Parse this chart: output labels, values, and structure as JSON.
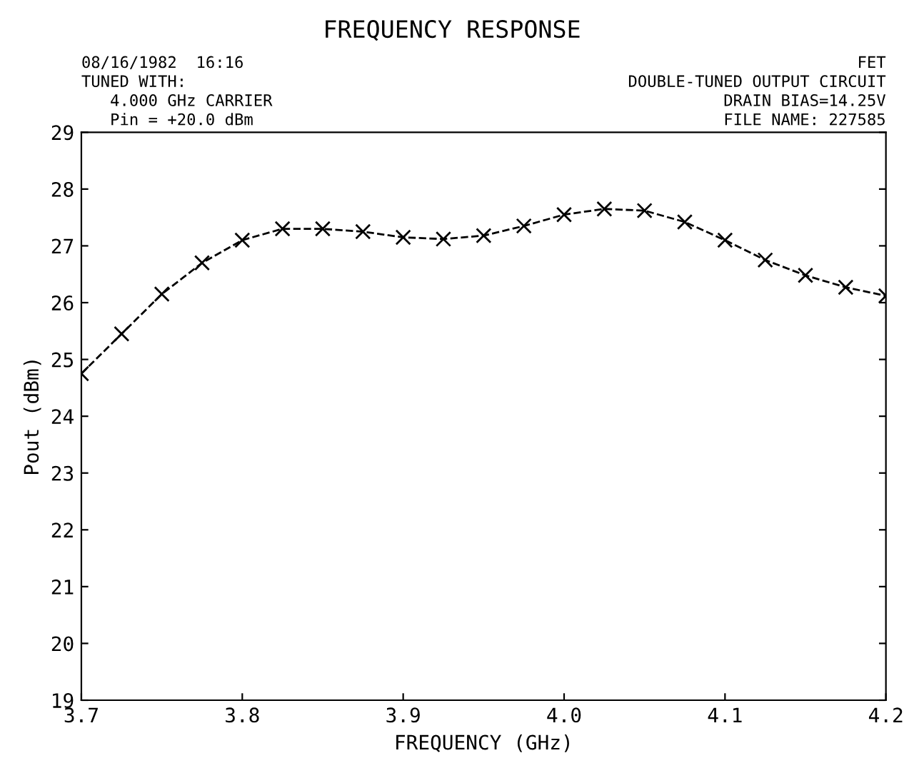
{
  "chart_data": {
    "type": "line",
    "title": "FREQUENCY RESPONSE",
    "xlabel": "FREQUENCY (GHz)",
    "ylabel": "Pout (dBm)",
    "annotations": [
      "08/16/1982  16:16\nTUNED WITH:\n   4.000 GHz CARRIER\n   Pin = +20.0 dBm",
      "FET\nDOUBLE-TUNED OUTPUT CIRCUIT\nDRAIN BIAS=14.25V\nFILE NAME: 227585"
    ],
    "x": [
      3.7,
      3.725,
      3.75,
      3.775,
      3.8,
      3.825,
      3.85,
      3.875,
      3.9,
      3.925,
      3.95,
      3.975,
      4.0,
      4.025,
      4.05,
      4.075,
      4.1,
      4.125,
      4.15,
      4.175,
      4.2
    ],
    "series": [
      {
        "color": "#000000",
        "values": [
          24.75,
          25.45,
          26.15,
          26.7,
          27.1,
          27.3,
          27.3,
          27.25,
          27.15,
          27.12,
          27.18,
          27.35,
          27.55,
          27.65,
          27.62,
          27.42,
          27.1,
          26.75,
          26.48,
          26.27,
          26.12
        ]
      }
    ],
    "xlim": [
      3.7,
      4.2
    ],
    "ylim": [
      19,
      29
    ],
    "xticks": [
      {
        "value": 3.7,
        "label": "3.7"
      },
      {
        "value": 3.8,
        "label": "3.8"
      },
      {
        "value": 3.9,
        "label": "3.9"
      },
      {
        "value": 4.0,
        "label": "4.0"
      },
      {
        "value": 4.1,
        "label": "4.1"
      },
      {
        "value": 4.2,
        "label": "4.2"
      }
    ],
    "yticks": [
      19,
      20,
      21,
      22,
      23,
      24,
      25,
      26,
      27,
      28,
      29
    ],
    "marker": "cross",
    "line_style": "dashed",
    "grid": false
  }
}
